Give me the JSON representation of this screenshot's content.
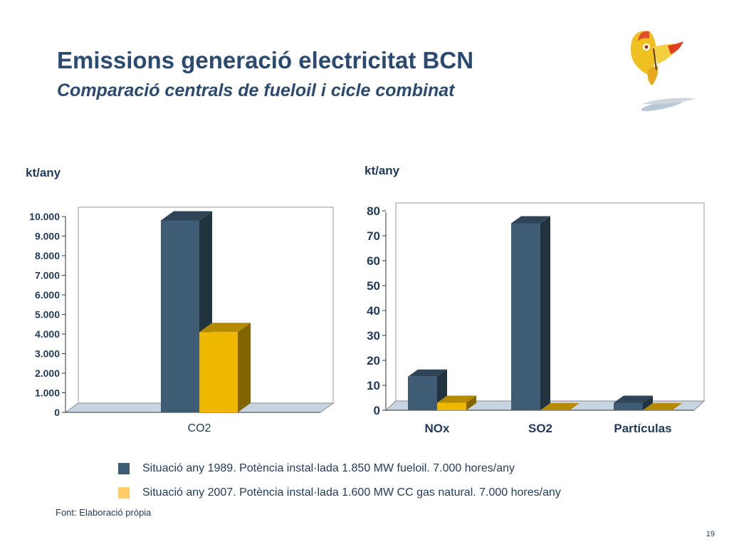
{
  "slide": {
    "title": "Emissions generació electricitat BCN",
    "subtitle": "Comparació centrals de fueloil i cicle combinat",
    "source": "Font: Elaboració pròpia",
    "page_number": "19"
  },
  "colors": {
    "series1": "#3e5c74",
    "series2": "#efb800",
    "text": "#1f3a5c"
  },
  "legend": [
    {
      "label": "Situació any 1989. Potència instal·lada 1.850 MW fueloil. 7.000 hores/any",
      "color": "#3e5c74"
    },
    {
      "label": "Situació any 2007. Potència instal·lada 1.600 MW CC gas natural. 7.000 hores/any",
      "color": "#ffcc66"
    }
  ],
  "chart_data": [
    {
      "type": "bar",
      "title": "",
      "ylabel": "kt/any",
      "xlabel": "",
      "categories": [
        "CO2"
      ],
      "ylim": [
        0,
        10000
      ],
      "ytick_labels": [
        "0",
        "1.000",
        "2.000",
        "3.000",
        "4.000",
        "5.000",
        "6.000",
        "7.000",
        "8.000",
        "9.000",
        "10.000"
      ],
      "grid": false,
      "series": [
        {
          "name": "Situació any 1989. Potència instal·lada 1.850 MW fueloil. 7.000 hores/any",
          "values": [
            9800
          ]
        },
        {
          "name": "Situació any 2007. Potència instal·lada 1.600 MW CC gas natural. 7.000 hores/any",
          "values": [
            4100
          ]
        }
      ]
    },
    {
      "type": "bar",
      "title": "",
      "ylabel": "kt/any",
      "xlabel": "",
      "categories": [
        "NOx",
        "SO2",
        "Partículas"
      ],
      "ylim": [
        0,
        80
      ],
      "ytick_labels": [
        "0",
        "10",
        "20",
        "30",
        "40",
        "50",
        "60",
        "70",
        "80"
      ],
      "grid": false,
      "series": [
        {
          "name": "Situació any 1989. Potència instal·lada 1.850 MW fueloil. 7.000 hores/any",
          "values": [
            13.5,
            75,
            3
          ]
        },
        {
          "name": "Situació any 2007. Potència instal·lada 1.600 MW CC gas natural. 7.000 hores/any",
          "values": [
            3,
            0,
            0
          ]
        }
      ]
    }
  ]
}
